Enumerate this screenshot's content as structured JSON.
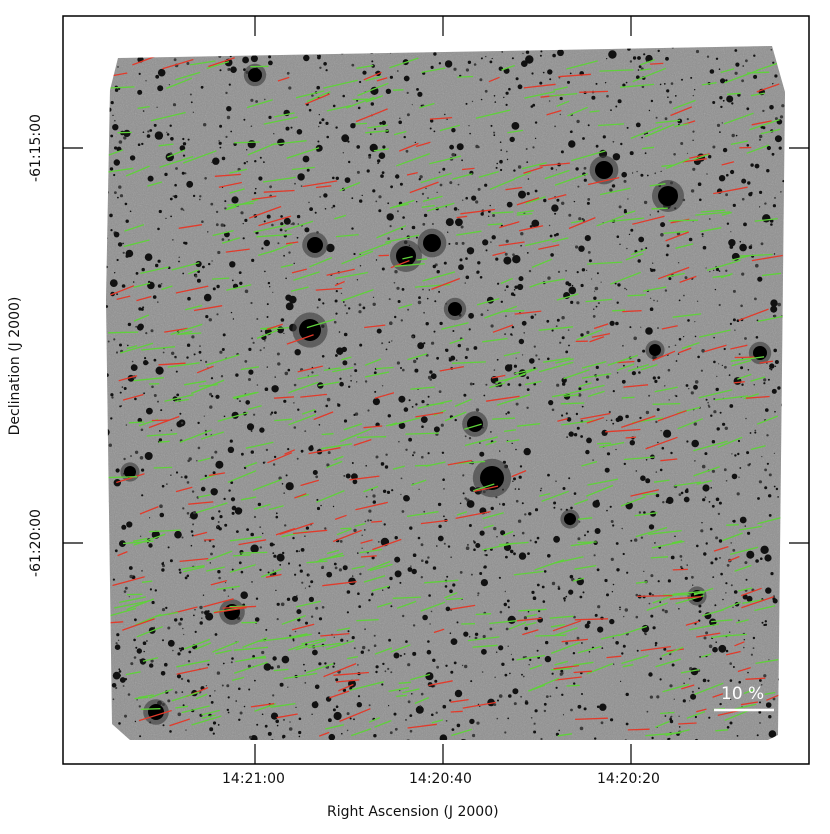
{
  "figure": {
    "xlabel": "Right Ascension (J 2000)",
    "ylabel": "Declination (J 2000)",
    "x_ticks": [
      "14:21:00",
      "14:20:40",
      "14:20:20"
    ],
    "y_ticks": [
      "-61:15:00",
      "-61:20:00"
    ],
    "scale_bar_label": "10 %",
    "colors": {
      "frame": "#000000",
      "background": "#ffffff",
      "sky": "#8f8f8f",
      "vector_primary": "#5fd13a",
      "vector_secondary": "#e23a2a",
      "scale_bar": "#ffffff"
    }
  }
}
